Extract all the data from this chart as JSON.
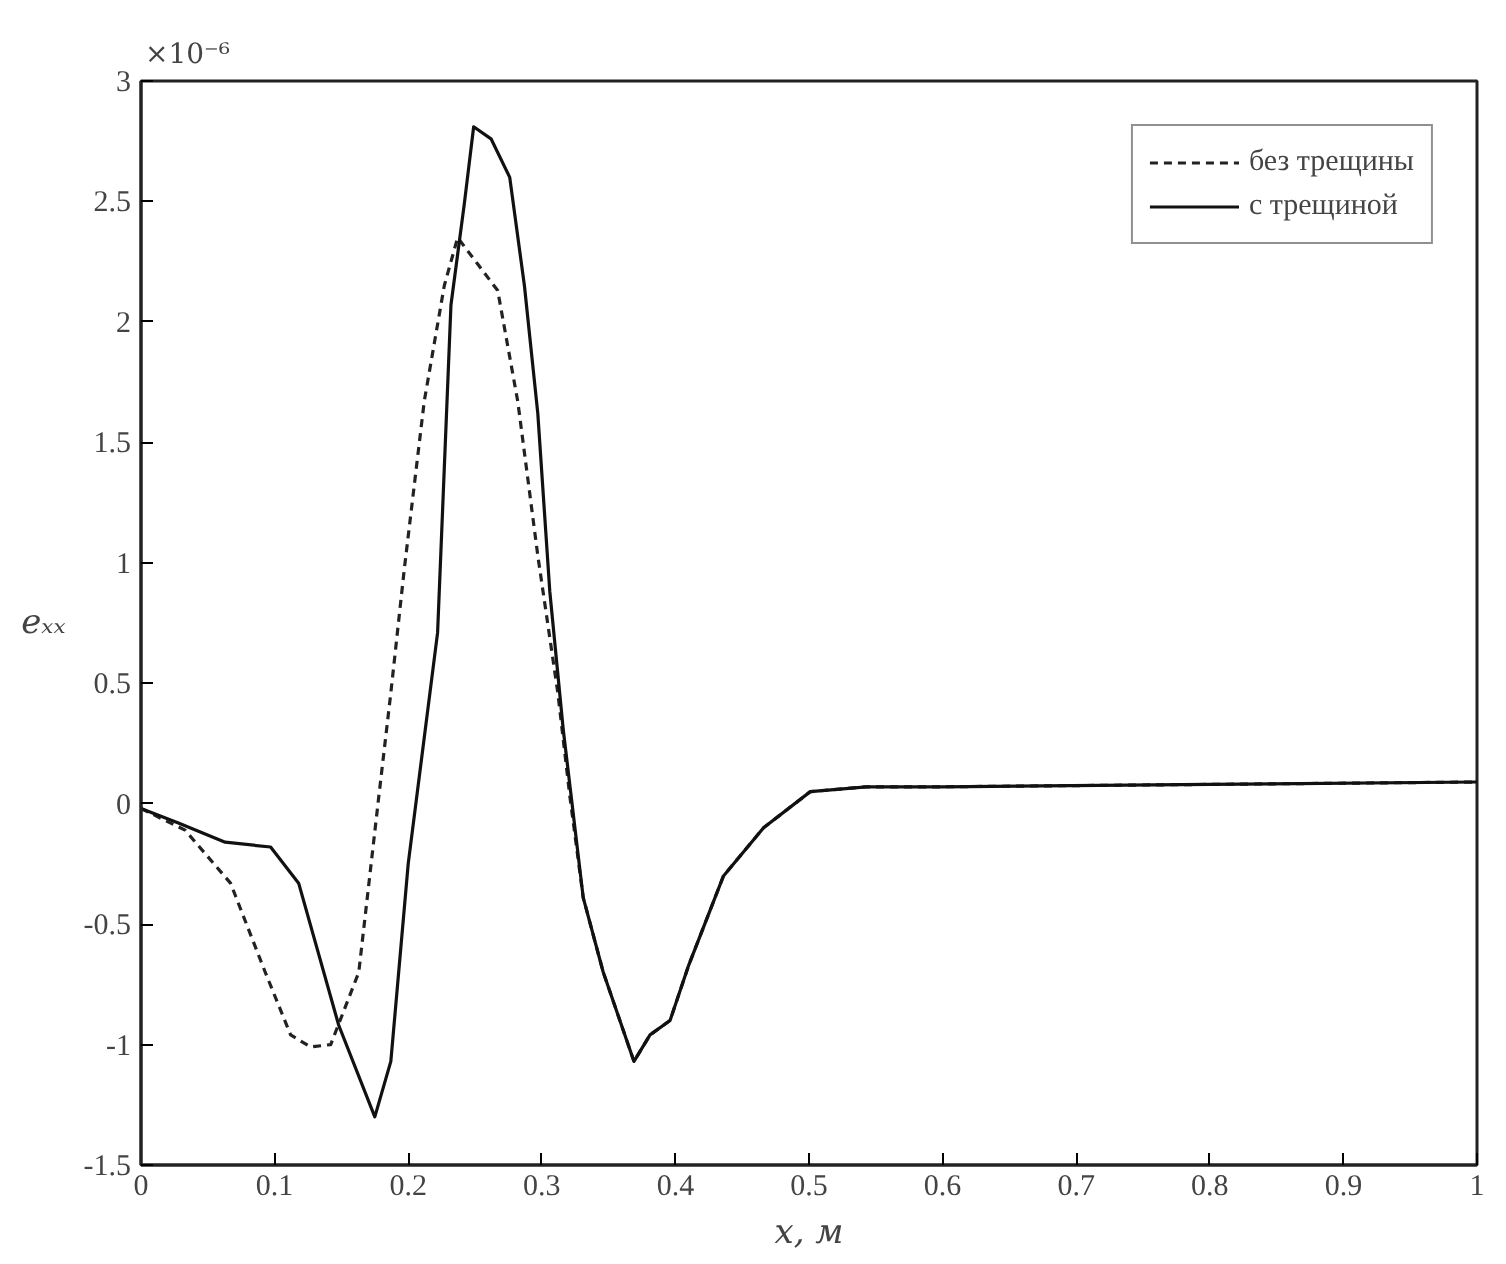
{
  "chart_data": {
    "type": "line",
    "xlabel": "x, м",
    "ylabel": "eₓₓ",
    "annotations": [
      "×10⁻⁶"
    ],
    "xlim": [
      0,
      1
    ],
    "ylim": [
      -1.5,
      3
    ],
    "xticks": [
      0,
      0.1,
      0.2,
      0.3,
      0.4,
      0.5,
      0.6,
      0.7,
      0.8,
      0.9,
      1
    ],
    "yticks": [
      -1.5,
      -1,
      -0.5,
      0,
      0.5,
      1,
      1.5,
      2,
      2.5,
      3
    ],
    "grid": false,
    "legend": "top right",
    "marker": "none",
    "series": [
      {
        "name": "без трещины",
        "color": "#222222",
        "line_style": "dashed",
        "x": [
          0,
          0.033,
          0.067,
          0.093,
          0.112,
          0.127,
          0.142,
          0.163,
          0.178,
          0.187,
          0.197,
          0.212,
          0.227,
          0.237,
          0.252,
          0.267,
          0.282,
          0.297,
          0.312,
          0.321,
          0.331,
          0.346,
          0.369,
          0.381,
          0.396,
          0.41,
          0.436,
          0.466,
          0.501,
          0.543,
          0.6,
          0.8,
          1
        ],
        "values": [
          -0.02,
          -0.11,
          -0.33,
          -0.7,
          -0.96,
          -1.01,
          -1.0,
          -0.7,
          0.03,
          0.46,
          0.97,
          1.67,
          2.15,
          2.35,
          2.24,
          2.13,
          1.67,
          1.03,
          0.46,
          0.03,
          -0.39,
          -0.7,
          -1.07,
          -0.96,
          -0.9,
          -0.67,
          -0.3,
          -0.1,
          0.05,
          0.07,
          0.07,
          0.08,
          0.09
        ]
      },
      {
        "name": "с трещиной",
        "color": "#111111",
        "line_style": "solid",
        "x": [
          0,
          0.028,
          0.063,
          0.097,
          0.118,
          0.148,
          0.175,
          0.187,
          0.2,
          0.222,
          0.232,
          0.242,
          0.249,
          0.262,
          0.276,
          0.287,
          0.297,
          0.306,
          0.316,
          0.331,
          0.346,
          0.369,
          0.381,
          0.396,
          0.41,
          0.436,
          0.466,
          0.501,
          0.543,
          0.6,
          0.8,
          1
        ],
        "values": [
          -0.02,
          -0.08,
          -0.16,
          -0.18,
          -0.33,
          -0.92,
          -1.3,
          -1.07,
          -0.25,
          0.71,
          2.07,
          2.49,
          2.81,
          2.76,
          2.6,
          2.15,
          1.62,
          0.88,
          0.31,
          -0.39,
          -0.7,
          -1.07,
          -0.96,
          -0.9,
          -0.67,
          -0.3,
          -0.1,
          0.05,
          0.07,
          0.07,
          0.08,
          0.09
        ]
      }
    ]
  }
}
